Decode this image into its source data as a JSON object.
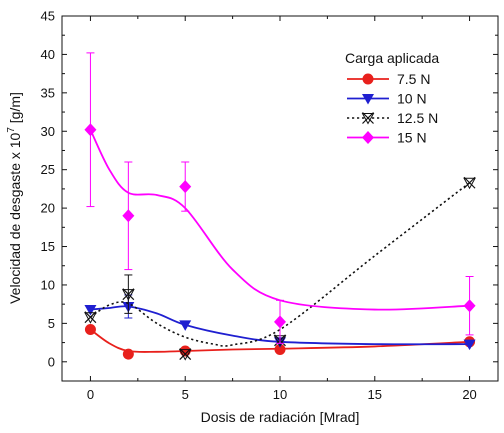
{
  "chart_data": {
    "type": "line",
    "title": "",
    "xlabel": "Dosis de radiación [Mrad]",
    "ylabel_main": "Velocidad de desgaste x 10",
    "ylabel_exp": "7",
    "ylabel_unit": " [g/m]",
    "xlim": [
      -1.5,
      21.5
    ],
    "ylim": [
      -2.5,
      45
    ],
    "xticks": [
      0,
      5,
      10,
      15,
      20
    ],
    "yticks": [
      0,
      5,
      10,
      15,
      20,
      25,
      30,
      35,
      40,
      45
    ],
    "legend_title": "Carga aplicada",
    "legend_position": "top-right",
    "series": [
      {
        "name": "7.5 N",
        "color": "#e8201c",
        "marker": "circle",
        "line_style": "solid",
        "x": [
          0,
          2,
          5,
          10,
          20
        ],
        "y": [
          4.2,
          1.0,
          1.4,
          1.6,
          2.6
        ],
        "err": [
          0,
          0,
          0,
          0,
          0
        ],
        "curve_x": [
          0,
          1,
          2,
          3.5,
          5,
          7.5,
          10,
          15,
          20
        ],
        "curve_y": [
          4.2,
          2.4,
          1.4,
          1.3,
          1.4,
          1.6,
          1.7,
          2.0,
          2.6
        ]
      },
      {
        "name": "10 N",
        "color": "#1f1fd0",
        "marker": "triangle-down",
        "line_style": "solid",
        "x": [
          0,
          2,
          5,
          10,
          20
        ],
        "y": [
          6.8,
          7.2,
          4.8,
          2.6,
          2.3
        ],
        "err": [
          0,
          1.5,
          0,
          0,
          0
        ],
        "curve_x": [
          0,
          1,
          2,
          3.5,
          5,
          7.5,
          10,
          15,
          20
        ],
        "curve_y": [
          6.8,
          7.0,
          7.2,
          6.3,
          4.8,
          3.4,
          2.6,
          2.3,
          2.3
        ]
      },
      {
        "name": "12.5 N",
        "color": "#111111",
        "marker": "x-triangle",
        "line_style": "dotted",
        "x": [
          0,
          2,
          5,
          10,
          20
        ],
        "y": [
          5.8,
          8.8,
          1.0,
          2.8,
          23.3
        ],
        "err": [
          0,
          2.5,
          0,
          0,
          0
        ],
        "curve_x": [
          0,
          1,
          2,
          3.5,
          5,
          6.5,
          7.5,
          10,
          15,
          20
        ],
        "curve_y": [
          5.8,
          7.4,
          7.6,
          5.0,
          3.2,
          2.3,
          2.2,
          4.2,
          13.8,
          23.3
        ]
      },
      {
        "name": "15 N",
        "color": "#ff00ff",
        "marker": "diamond",
        "line_style": "solid",
        "x": [
          0,
          2,
          5,
          10,
          20
        ],
        "y": [
          30.2,
          19.0,
          22.8,
          5.2,
          7.3
        ],
        "err": [
          10.0,
          7.0,
          3.2,
          2.8,
          3.8
        ],
        "curve_x": [
          0,
          1,
          2,
          3.5,
          5,
          7.5,
          10,
          15,
          20
        ],
        "curve_y": [
          30.2,
          25.0,
          22.0,
          21.7,
          20.0,
          12.0,
          8.0,
          6.8,
          7.3
        ]
      }
    ]
  }
}
